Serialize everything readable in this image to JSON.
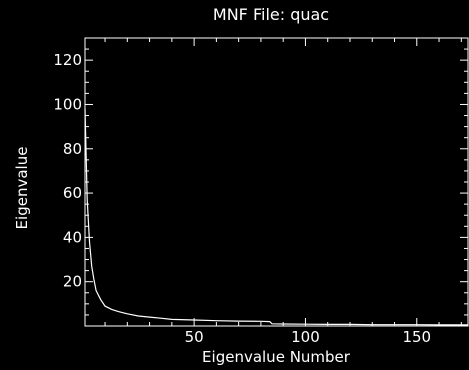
{
  "chart_data": {
    "type": "line",
    "title": "MNF File: quac",
    "xlabel": "Eigenvalue Number",
    "ylabel": "Eigenvalue",
    "xlim": [
      1,
      173
    ],
    "ylim": [
      0,
      130
    ],
    "xticks": [
      50,
      100,
      150
    ],
    "yticks": [
      20,
      40,
      60,
      80,
      100,
      120
    ],
    "grid": false,
    "series": [
      {
        "x": [
          1,
          2,
          3,
          4,
          5,
          6,
          8,
          10,
          13,
          16,
          20,
          25,
          30,
          35,
          40,
          50,
          60,
          70,
          80,
          84,
          85,
          90,
          100,
          110,
          120,
          130,
          140,
          150,
          160,
          173
        ],
        "y": [
          98,
          57,
          38,
          27,
          21,
          16,
          12,
          9,
          7.5,
          6.5,
          5.5,
          4.5,
          4,
          3.5,
          3,
          2.7,
          2.4,
          2.2,
          2.1,
          2.0,
          1.0,
          0.9,
          0.8,
          0.7,
          0.7,
          0.6,
          0.6,
          0.6,
          0.5,
          0.5
        ]
      }
    ]
  }
}
